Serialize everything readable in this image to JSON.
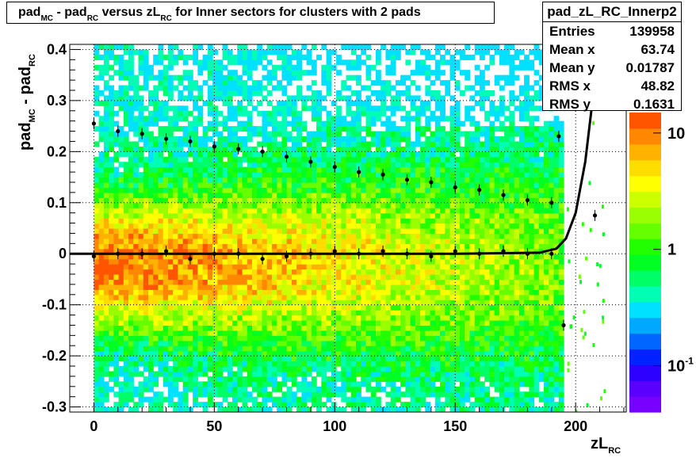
{
  "title": {
    "parts": [
      "pad",
      "MC",
      " - pad",
      "RC",
      " versus zL",
      "RC",
      " for Inner sectors for clusters with 2 pads"
    ]
  },
  "stats": {
    "name": "pad_zL_RC_Innerp2",
    "rows": [
      {
        "label": "Entries",
        "value": "139958"
      },
      {
        "label": "Mean x",
        "value": "63.74"
      },
      {
        "label": "Mean y",
        "value": "0.01787"
      },
      {
        "label": "RMS x",
        "value": "48.82"
      },
      {
        "label": "RMS y",
        "value": "0.1631"
      }
    ]
  },
  "chart_data": {
    "type": "heatmap",
    "title": "pad_MC - pad_RC versus zL_RC for Inner sectors for clusters with 2 pads",
    "xlabel": "zL_RC",
    "ylabel": "pad_MC - pad_RC",
    "xlim": [
      -10,
      221
    ],
    "ylim": [
      -0.31,
      0.41
    ],
    "xticks": [
      0,
      50,
      100,
      150,
      200
    ],
    "xtick_labels": [
      "0",
      "50",
      "100",
      "150",
      "200"
    ],
    "yticks": [
      -0.3,
      -0.2,
      -0.1,
      0,
      0.1,
      0.2,
      0.3,
      0.4
    ],
    "ytick_labels": [
      "-0.3",
      "-0.2",
      "-0.1",
      "0",
      "0.1",
      "0.2",
      "0.3",
      "0.4"
    ],
    "grid": true,
    "heatmap_x_range": [
      0,
      195
    ],
    "colorbar": {
      "scale": "log",
      "range": [
        0.04,
        15
      ],
      "tick_labels": [
        {
          "value": 10,
          "base": "10",
          "exp": ""
        },
        {
          "value": 1,
          "base": "1",
          "exp": ""
        },
        {
          "value": 0.1,
          "base": "10",
          "exp": "-1"
        }
      ],
      "colors": [
        "#7700ff",
        "#5a00ff",
        "#2b00ff",
        "#0022ff",
        "#0066ff",
        "#00a8ff",
        "#00e0ff",
        "#00ffb5",
        "#00ff66",
        "#00ff22",
        "#22ff00",
        "#66ff00",
        "#99ff00",
        "#ccff00",
        "#ffff00",
        "#ffdd00",
        "#ffb300",
        "#ff8800",
        "#ff5500"
      ]
    },
    "series": [
      {
        "name": "profile_mean",
        "type": "scatter_errorbar",
        "x": [
          0,
          10,
          20,
          30,
          40,
          50,
          60,
          70,
          80,
          90,
          100,
          110,
          120,
          130,
          140,
          150,
          160,
          170,
          180,
          190,
          195,
          208
        ],
        "y": [
          -0.005,
          0.0,
          0.0,
          0.005,
          -0.01,
          0.0,
          0.0,
          -0.01,
          -0.005,
          0.0,
          0.005,
          0.0,
          0.005,
          0.0,
          -0.005,
          0.005,
          0.0,
          0.005,
          0.0,
          0.0,
          -0.14,
          0.075
        ]
      },
      {
        "name": "profile_rms",
        "type": "scatter_errorbar",
        "x": [
          0,
          10,
          20,
          30,
          40,
          50,
          60,
          70,
          80,
          90,
          100,
          110,
          120,
          130,
          140,
          150,
          160,
          170,
          180,
          190,
          193
        ],
        "y": [
          0.255,
          0.24,
          0.235,
          0.225,
          0.22,
          0.21,
          0.205,
          0.2,
          0.19,
          0.18,
          0.17,
          0.16,
          0.155,
          0.145,
          0.14,
          0.13,
          0.125,
          0.115,
          0.105,
          0.1,
          0.23
        ]
      },
      {
        "name": "fit",
        "type": "line",
        "x": [
          -10,
          50,
          100,
          150,
          185,
          192,
          196,
          200,
          204,
          207,
          209
        ],
        "y": [
          0.0,
          0.0,
          0.0,
          0.0,
          0.002,
          0.01,
          0.03,
          0.08,
          0.18,
          0.3,
          0.41
        ]
      }
    ]
  }
}
